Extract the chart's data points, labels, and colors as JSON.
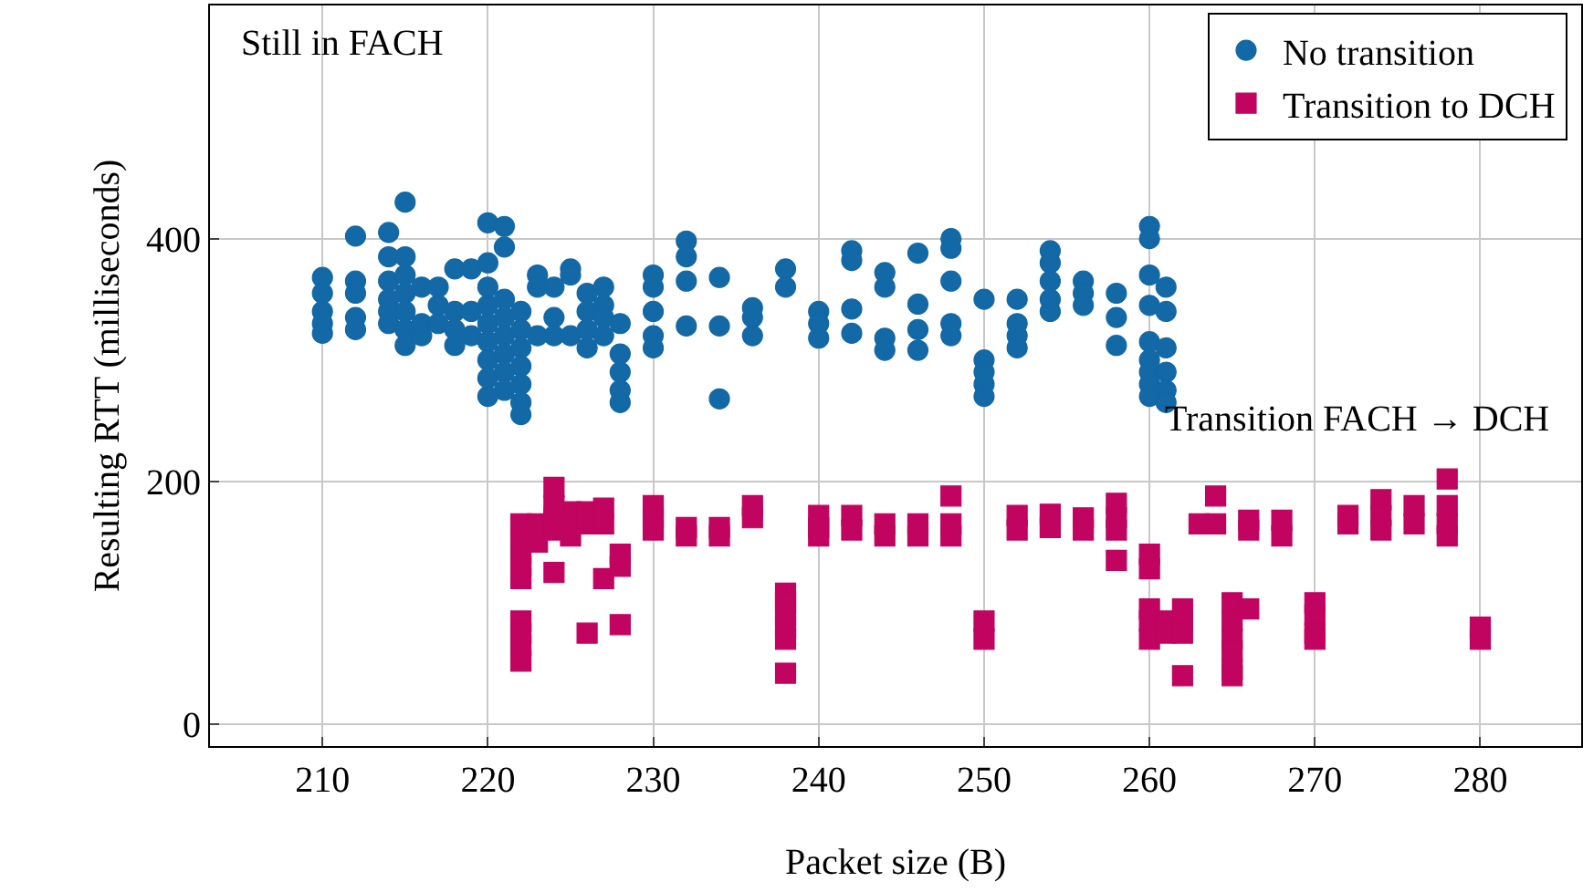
{
  "chart_data": {
    "type": "scatter",
    "xlabel": "Packet size (B)",
    "ylabel": "Resulting RTT (milliseconds)",
    "xlim": [
      203.2,
      286.1
    ],
    "ylim": [
      -18,
      592
    ],
    "xticks": [
      210,
      220,
      230,
      240,
      250,
      260,
      270,
      280
    ],
    "yticks": [
      0,
      200,
      400
    ],
    "grid": true,
    "legend": "top right",
    "annotations": [
      "Still in FACH",
      "Transition FACH → DCH"
    ],
    "series": [
      {
        "name": "No transition",
        "color": "#1368a6",
        "marker": "circle",
        "x": [
          210,
          210,
          210,
          210,
          210,
          212,
          212,
          212,
          212,
          212,
          214,
          214,
          214,
          214,
          214,
          214,
          215,
          215,
          215,
          215,
          215,
          215,
          215,
          216,
          216,
          216,
          217,
          217,
          217,
          218,
          218,
          218,
          218,
          219,
          219,
          219,
          220,
          220,
          220,
          220,
          220,
          220,
          220,
          220,
          220,
          221,
          221,
          221,
          221,
          221,
          221,
          221,
          221,
          222,
          222,
          222,
          222,
          222,
          222,
          222,
          223,
          223,
          223,
          224,
          224,
          224,
          225,
          225,
          225,
          226,
          226,
          226,
          226,
          227,
          227,
          227,
          227,
          228,
          228,
          228,
          228,
          228,
          230,
          230,
          230,
          230,
          230,
          232,
          232,
          232,
          232,
          234,
          234,
          234,
          236,
          236,
          236,
          238,
          238,
          240,
          240,
          240,
          242,
          242,
          242,
          242,
          244,
          244,
          244,
          244,
          246,
          246,
          246,
          246,
          248,
          248,
          248,
          248,
          248,
          250,
          250,
          250,
          250,
          250,
          252,
          252,
          252,
          252,
          254,
          254,
          254,
          254,
          254,
          256,
          256,
          256,
          258,
          258,
          258,
          260,
          260,
          260,
          260,
          260,
          260,
          260,
          260,
          260,
          261,
          261,
          261,
          261,
          261,
          261
        ],
        "values": [
          368,
          355,
          340,
          330,
          322,
          402,
          365,
          355,
          335,
          325,
          405,
          385,
          365,
          350,
          340,
          330,
          430,
          385,
          370,
          355,
          340,
          325,
          312,
          360,
          330,
          320,
          360,
          345,
          330,
          375,
          340,
          325,
          312,
          375,
          340,
          320,
          413,
          380,
          360,
          345,
          330,
          315,
          300,
          285,
          270,
          410,
          393,
          350,
          335,
          320,
          305,
          290,
          275,
          340,
          325,
          310,
          295,
          280,
          265,
          255,
          370,
          360,
          320,
          360,
          335,
          320,
          375,
          370,
          320,
          355,
          340,
          325,
          310,
          360,
          345,
          335,
          320,
          330,
          305,
          290,
          275,
          265,
          370,
          360,
          340,
          320,
          310,
          398,
          385,
          365,
          328,
          368,
          328,
          268,
          343,
          335,
          320,
          375,
          360,
          340,
          330,
          318,
          390,
          382,
          342,
          322,
          372,
          360,
          318,
          308,
          388,
          346,
          325,
          308,
          400,
          392,
          365,
          330,
          320,
          350,
          300,
          290,
          280,
          270,
          350,
          330,
          320,
          310,
          390,
          380,
          365,
          350,
          340,
          365,
          355,
          345,
          355,
          335,
          312,
          410,
          400,
          370,
          345,
          315,
          300,
          290,
          280,
          270,
          360,
          340,
          310,
          290,
          275,
          265
        ]
      },
      {
        "name": "Transition to DCH",
        "color": "#c0045f",
        "marker": "square",
        "x": [
          222,
          222,
          222,
          222,
          222,
          222,
          222,
          222,
          222,
          223,
          223,
          224,
          224,
          224,
          224,
          224,
          225,
          225,
          225,
          226,
          226,
          226,
          227,
          227,
          227,
          228,
          228,
          228,
          230,
          230,
          230,
          232,
          232,
          234,
          234,
          236,
          236,
          238,
          238,
          238,
          238,
          238,
          238,
          240,
          240,
          240,
          242,
          242,
          244,
          244,
          246,
          246,
          248,
          248,
          248,
          250,
          250,
          252,
          252,
          254,
          254,
          256,
          256,
          258,
          258,
          258,
          258,
          260,
          260,
          260,
          260,
          260,
          261,
          261,
          262,
          262,
          262,
          262,
          263,
          264,
          264,
          265,
          265,
          265,
          265,
          265,
          265,
          266,
          266,
          266,
          268,
          268,
          270,
          270,
          270,
          270,
          272,
          272,
          274,
          274,
          274,
          276,
          276,
          278,
          278,
          278,
          278,
          280,
          280
        ],
        "values": [
          165,
          150,
          140,
          130,
          120,
          85,
          75,
          65,
          52,
          165,
          150,
          195,
          180,
          170,
          160,
          125,
          175,
          165,
          155,
          175,
          165,
          75,
          178,
          165,
          120,
          140,
          130,
          82,
          180,
          170,
          160,
          162,
          155,
          162,
          155,
          180,
          170,
          108,
          100,
          90,
          80,
          70,
          42,
          172,
          162,
          155,
          172,
          160,
          165,
          155,
          165,
          155,
          188,
          165,
          155,
          85,
          70,
          172,
          160,
          173,
          162,
          170,
          160,
          182,
          170,
          160,
          135,
          140,
          128,
          95,
          85,
          70,
          85,
          75,
          95,
          85,
          75,
          40,
          165,
          188,
          165,
          100,
          85,
          70,
          60,
          45,
          40,
          168,
          160,
          95,
          168,
          155,
          100,
          90,
          75,
          70,
          172,
          165,
          185,
          172,
          160,
          180,
          165,
          202,
          180,
          165,
          155,
          80,
          70
        ]
      }
    ]
  }
}
